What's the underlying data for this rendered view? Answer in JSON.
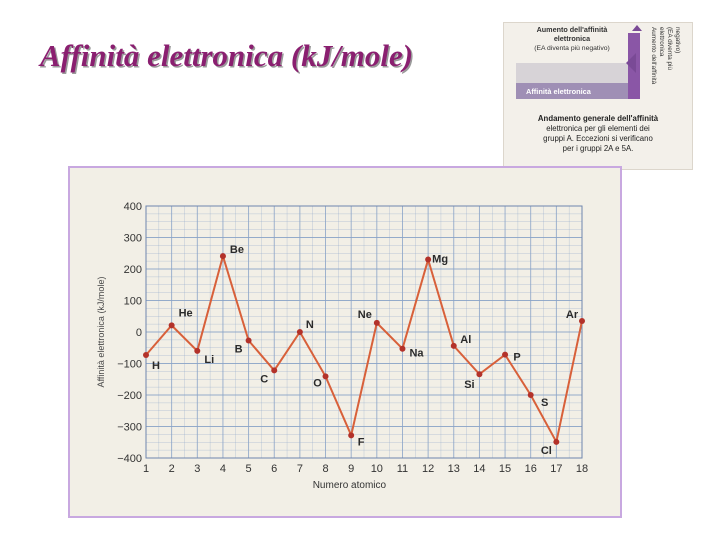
{
  "slide": {
    "title": "Affinità elettronica (kJ/mole)"
  },
  "inset": {
    "arrow_top_text": [
      "Aumento dell'affinità",
      "elettronica",
      "(EA diventa più negativo)"
    ],
    "arrow_right_text": [
      "Aumento dell'affinità",
      "elettronica",
      "(EA diventa più",
      "negativo)"
    ],
    "bar_label": "Affinità elettronica",
    "caption": [
      "Andamento generale dell'affinità",
      "elettronica per gli elementi dei",
      "gruppi A. Eccezioni si verificano",
      "per i gruppi 2A e 5A."
    ]
  },
  "chart_data": {
    "type": "line",
    "title": "",
    "xlabel": "Numero atomico",
    "ylabel": "Affinità elettronica (kJ/mole)",
    "xlim": [
      1,
      18
    ],
    "ylim": [
      -400,
      400
    ],
    "x_ticks": [
      1,
      2,
      3,
      4,
      5,
      6,
      7,
      8,
      9,
      10,
      11,
      12,
      13,
      14,
      15,
      16,
      17,
      18
    ],
    "y_ticks": [
      400,
      300,
      200,
      100,
      0,
      -100,
      -200,
      -300,
      -400
    ],
    "y_tick_labels": [
      "400",
      "300",
      "200",
      "100",
      "0",
      "−100",
      "−200",
      "−300",
      "−400"
    ],
    "grid": true,
    "series": [
      {
        "x": [
          1,
          2,
          3,
          4,
          5,
          6,
          7,
          8,
          9,
          10,
          11,
          12,
          13,
          14,
          15,
          16,
          17,
          18
        ],
        "values": [
          -73,
          21,
          -60,
          241,
          -27,
          -122,
          0,
          -141,
          -328,
          29,
          -53,
          230,
          -44,
          -134,
          -72,
          -200,
          -349,
          35
        ],
        "labels": [
          "H",
          "He",
          "Li",
          "Be",
          "B",
          "C",
          "N",
          "O",
          "F",
          "Ne",
          "Na",
          "Mg",
          "Al",
          "Si",
          "P",
          "S",
          "Cl",
          "Ar"
        ]
      }
    ],
    "colors": {
      "line": "#d8603a",
      "point": "#b3322a",
      "grid": "#8aa4c8",
      "background": "#f2efe6"
    }
  }
}
